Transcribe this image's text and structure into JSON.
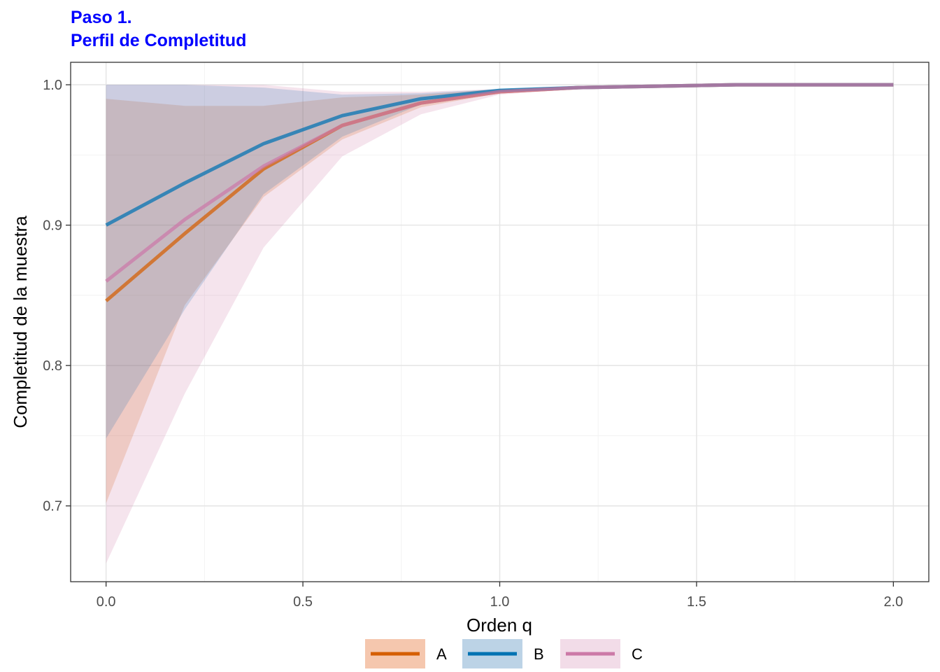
{
  "chart_data": {
    "type": "line",
    "title": "Paso 1.",
    "subtitle": "Perfil de Completitud",
    "xlabel": "Orden q",
    "ylabel": "Completitud de la muestra",
    "xlim": [
      -0.09,
      2.09
    ],
    "ylim": [
      0.646,
      1.016
    ],
    "x_ticks": [
      0.0,
      0.5,
      1.0,
      1.5,
      2.0
    ],
    "x_tick_labels": [
      "0.0",
      "0.5",
      "1.0",
      "1.5",
      "2.0"
    ],
    "y_ticks": [
      0.7,
      0.8,
      0.9,
      1.0
    ],
    "y_tick_labels": [
      "0.7",
      "0.8",
      "0.9",
      "1.0"
    ],
    "grid": true,
    "legend_position": "bottom",
    "x": [
      0.0,
      0.2,
      0.4,
      0.6,
      0.8,
      1.0,
      1.2,
      1.4,
      1.6,
      1.8,
      2.0
    ],
    "series": [
      {
        "name": "A",
        "color": "#D55E00",
        "fill": "#F5C7AE",
        "values": [
          0.846,
          0.894,
          0.94,
          0.971,
          0.987,
          0.995,
          0.998,
          0.999,
          1.0,
          1.0,
          1.0
        ],
        "lower": [
          0.702,
          0.843,
          0.92,
          0.961,
          0.984,
          0.994,
          0.998,
          0.999,
          1.0,
          1.0,
          1.0
        ],
        "upper": [
          0.99,
          0.985,
          0.985,
          0.991,
          0.993,
          0.997,
          0.999,
          1.0,
          1.0,
          1.0,
          1.0
        ]
      },
      {
        "name": "B",
        "color": "#0072B2",
        "fill": "#BCD3E6",
        "values": [
          0.9,
          0.93,
          0.958,
          0.978,
          0.99,
          0.996,
          0.998,
          0.999,
          1.0,
          1.0,
          1.0
        ],
        "lower": [
          0.748,
          0.84,
          0.922,
          0.963,
          0.986,
          0.995,
          0.998,
          0.999,
          1.0,
          1.0,
          1.0
        ],
        "upper": [
          1.0,
          1.0,
          0.998,
          0.993,
          0.994,
          0.997,
          0.999,
          1.0,
          1.0,
          1.0,
          1.0
        ]
      },
      {
        "name": "C",
        "color": "#CC79A7",
        "fill": "#F2DCE8",
        "values": [
          0.86,
          0.904,
          0.942,
          0.971,
          0.987,
          0.995,
          0.998,
          0.999,
          1.0,
          1.0,
          1.0
        ],
        "lower": [
          0.659,
          0.78,
          0.884,
          0.949,
          0.979,
          0.993,
          0.997,
          0.999,
          1.0,
          1.0,
          1.0
        ],
        "upper": [
          1.0,
          1.0,
          1.0,
          0.995,
          0.995,
          0.997,
          0.999,
          1.0,
          1.0,
          1.0,
          1.0
        ]
      }
    ]
  }
}
